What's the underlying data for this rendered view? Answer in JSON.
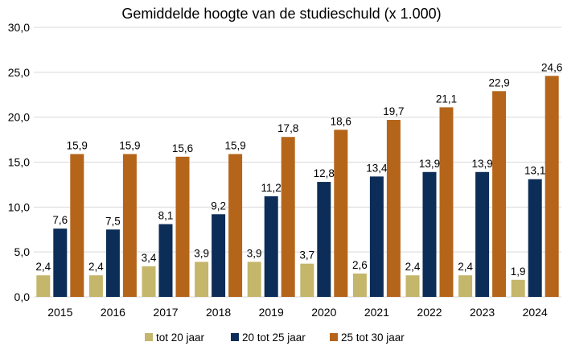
{
  "chart_data": {
    "type": "bar",
    "title": "Gemiddelde hoogte van de studieschuld (x 1.000)",
    "categories": [
      "2015",
      "2016",
      "2017",
      "2018",
      "2019",
      "2020",
      "2021",
      "2022",
      "2023",
      "2024"
    ],
    "series": [
      {
        "name": "tot 20 jaar",
        "color": "#c4b66b",
        "values": [
          2.4,
          2.4,
          3.4,
          3.9,
          3.9,
          3.7,
          2.6,
          2.4,
          2.4,
          1.9
        ],
        "labels": [
          "2,4",
          "2,4",
          "3,4",
          "3,9",
          "3,9",
          "3,7",
          "2,6",
          "2,4",
          "2,4",
          "1,9"
        ]
      },
      {
        "name": "20 tot 25 jaar",
        "color": "#0c2d57",
        "values": [
          7.6,
          7.5,
          8.1,
          9.2,
          11.2,
          12.8,
          13.4,
          13.9,
          13.9,
          13.1
        ],
        "labels": [
          "7,6",
          "7,5",
          "8,1",
          "9,2",
          "11,2",
          "12,8",
          "13,4",
          "13,9",
          "13,9",
          "13,1"
        ]
      },
      {
        "name": "25 tot 30 jaar",
        "color": "#b5651a",
        "values": [
          15.9,
          15.9,
          15.6,
          15.9,
          17.8,
          18.6,
          19.7,
          21.1,
          22.9,
          24.6
        ],
        "labels": [
          "15,9",
          "15,9",
          "15,6",
          "15,9",
          "17,8",
          "18,6",
          "19,7",
          "21,1",
          "22,9",
          "24,6"
        ]
      }
    ],
    "ylim": [
      0,
      30
    ],
    "yticks": [
      0,
      5,
      10,
      15,
      20,
      25,
      30
    ],
    "ytick_labels": [
      "0,0",
      "5,0",
      "10,0",
      "15,0",
      "20,0",
      "25,0",
      "30,0"
    ],
    "grid": true,
    "legend_position": "bottom"
  }
}
